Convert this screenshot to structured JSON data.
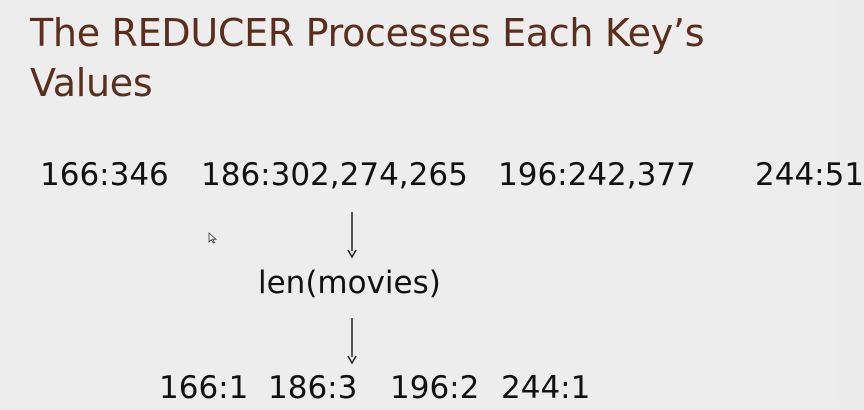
{
  "slide": {
    "title": "The REDUCER Processes Each Key’s Values",
    "input_pairs": [
      "166:346",
      "186:302,274,265",
      "196:242,377",
      "244:51"
    ],
    "function_label": "len(movies)",
    "output_pairs": [
      "166:1",
      "186:3",
      "196:2",
      "244:1"
    ]
  },
  "colors": {
    "background": "#ededed",
    "title": "#5a2e1c",
    "body_text": "#111111",
    "arrow": "#222222"
  },
  "icons": {
    "flow_arrow": "down-arrow-icon",
    "pointer": "mouse-pointer-icon"
  }
}
